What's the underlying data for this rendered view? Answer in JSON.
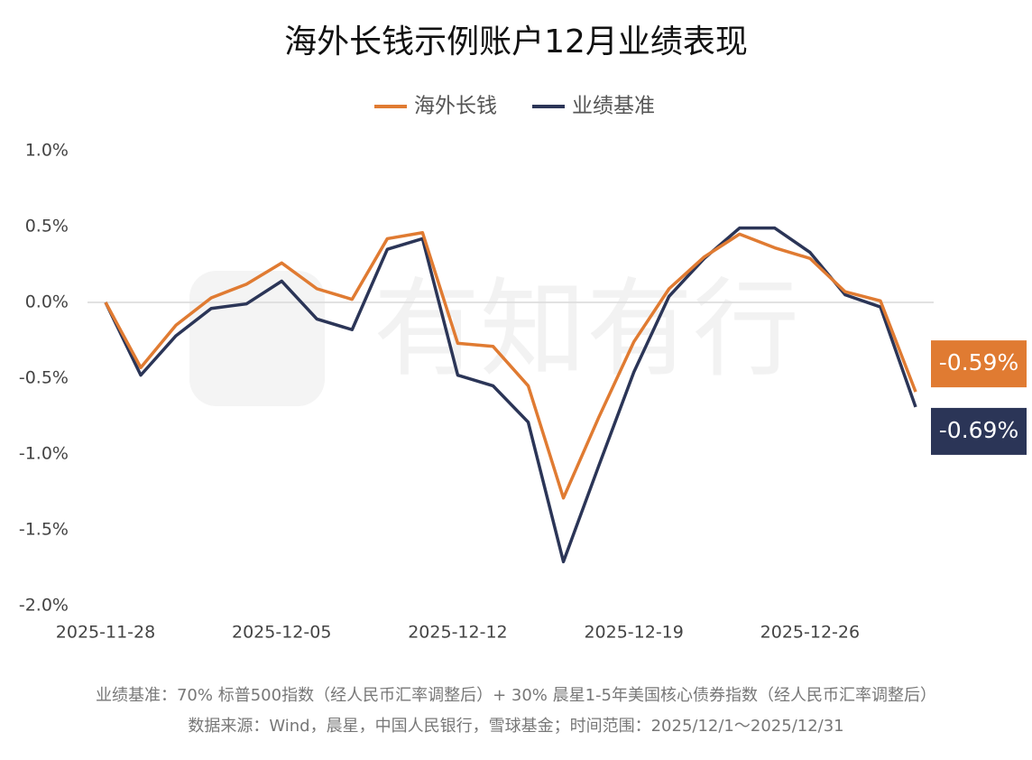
{
  "chart_data": {
    "type": "line",
    "title": "海外长钱示例账户12月业绩表现",
    "watermark": "有知有行",
    "categories": [
      "2025-11-28",
      null,
      null,
      null,
      null,
      "2025-12-05",
      null,
      null,
      null,
      null,
      "2025-12-12",
      null,
      null,
      null,
      null,
      "2025-12-19",
      null,
      null,
      null,
      null,
      "2025-12-26",
      null,
      null,
      null
    ],
    "series": [
      {
        "name": "海外长钱",
        "color": "#e07b32",
        "values": [
          0,
          -0.43,
          -0.15,
          0.03,
          0.12,
          0.26,
          0.09,
          0.02,
          0.42,
          0.46,
          -0.27,
          -0.29,
          -0.55,
          -1.29,
          -0.76,
          -0.26,
          0.09,
          0.3,
          0.45,
          0.36,
          0.29,
          0.07,
          0.01,
          -0.59
        ],
        "value_labels": [
          null,
          null,
          null,
          null,
          null,
          null,
          null,
          null,
          null,
          null,
          null,
          null,
          null,
          null,
          null,
          null,
          null,
          null,
          null,
          null,
          null,
          null,
          null,
          "-0.59%"
        ]
      },
      {
        "name": "业绩基准",
        "color": "#2b3557",
        "values": [
          0,
          -0.48,
          -0.22,
          -0.04,
          -0.01,
          0.14,
          -0.11,
          -0.18,
          0.35,
          0.42,
          -0.48,
          -0.55,
          -0.79,
          -1.71,
          -1.08,
          -0.46,
          0.04,
          0.29,
          0.49,
          0.49,
          0.33,
          0.05,
          -0.03,
          -0.69
        ],
        "value_labels": [
          null,
          null,
          null,
          null,
          null,
          null,
          null,
          null,
          null,
          null,
          null,
          null,
          null,
          null,
          null,
          null,
          null,
          null,
          null,
          null,
          null,
          null,
          null,
          "-0.69%"
        ]
      }
    ],
    "ylim": [
      -2,
      1
    ],
    "yticks": [
      {
        "value": -2,
        "label": "-2.0%"
      },
      {
        "value": -1.5,
        "label": "-1.5%"
      },
      {
        "value": -1,
        "label": "-1.0%"
      },
      {
        "value": -0.5,
        "label": "-0.5%"
      },
      {
        "value": 0,
        "label": "0.0%"
      },
      {
        "value": 0.5,
        "label": "0.5%"
      },
      {
        "value": 1,
        "label": "1.0%"
      }
    ],
    "grid": false,
    "legend": "top",
    "notes": [
      "业绩基准：70% 标普500指数（经人民币汇率调整后）+ 30% 晨星1-5年美国核心债券指数（经人民币汇率调整后）",
      "数据来源：Wind，晨星，中国人民银行，雪球基金；时间范围：2025/12/1～2025/12/31"
    ]
  }
}
